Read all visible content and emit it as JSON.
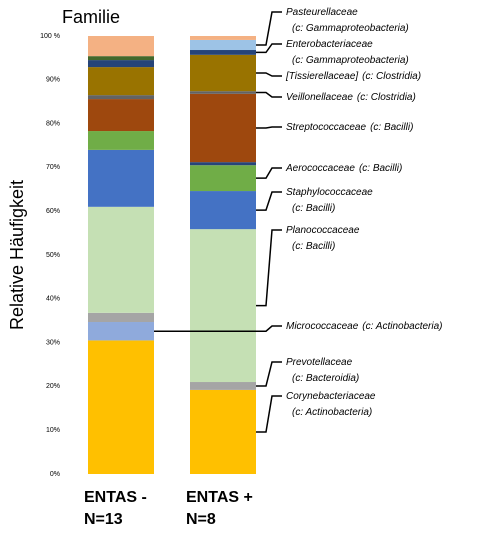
{
  "chart_data": {
    "type": "stacked_bar",
    "title": "Familie",
    "y_label": "Relative Häufigkeit",
    "categories": [
      "ENTAS -\nN=13",
      "ENTAS +\nN=8"
    ],
    "ylim": [
      0,
      100
    ],
    "yticks": [
      {
        "value": 0,
        "label": "0%"
      },
      {
        "value": 10,
        "label": "10%"
      },
      {
        "value": 20,
        "label": "20%"
      },
      {
        "value": 30,
        "label": "30%"
      },
      {
        "value": 40,
        "label": "40%"
      },
      {
        "value": 50,
        "label": "50%"
      },
      {
        "value": 60,
        "label": "60%"
      },
      {
        "value": 70,
        "label": "70%"
      },
      {
        "value": 80,
        "label": "80%"
      },
      {
        "value": 90,
        "label": "90%"
      },
      {
        "value": 100,
        "label": "100 %"
      }
    ],
    "series": [
      {
        "name": "Corynebacteriaceae",
        "class": "(c: Actinobacteria)",
        "color": "#FFC000",
        "values": [
          30.5,
          19.2
        ]
      },
      {
        "name": "Micrococcaceae",
        "class": "(c: Actinobacteria)",
        "color": "#8FAADC",
        "values": [
          4.2,
          0
        ]
      },
      {
        "name": "Prevotellaceae",
        "class": "(c: Bacteroidia)",
        "color": "#A5A5A5",
        "values": [
          2.1,
          1.8
        ]
      },
      {
        "name": "Planococcaceae",
        "class": "(c: Bacilli)",
        "color": "#C5E0B4",
        "values": [
          24.2,
          34.9
        ]
      },
      {
        "name": "Staphylococcaceae",
        "class": "(c: Bacilli)",
        "color": "#4472C4",
        "values": [
          13.0,
          8.7
        ]
      },
      {
        "name": "Aerococcaceae",
        "class": "(c: Bacilli)",
        "color": "#70AD47",
        "values": [
          4.3,
          5.9
        ]
      },
      {
        "color": "#264478",
        "values": [
          0,
          0.7
        ]
      },
      {
        "name": "Streptococcaceae",
        "class": "(c: Bacilli)",
        "color": "#9E480E",
        "values": [
          7.3,
          15.6
        ]
      },
      {
        "name": "Veillonellaceae",
        "class": "(c: Clostridia)",
        "color": "#636363",
        "values": [
          0.9,
          0.6
        ]
      },
      {
        "name": "[Tissierellaceae]",
        "class": "(c: Clostridia)",
        "color": "#997300",
        "values": [
          6.4,
          8.3
        ]
      },
      {
        "name": "Enterobacteriaceae",
        "class": "(c: Gammaproteobacteria)",
        "color": "#264478",
        "values": [
          1.6,
          1.1
        ]
      },
      {
        "color": "#43682B",
        "values": [
          0.9,
          0
        ]
      },
      {
        "name": "Pasteurellaceae",
        "class": "(c: Gammaproteobacteria)",
        "color": "#9DC3E6",
        "values": [
          0,
          2.3
        ]
      },
      {
        "color": "#F4B183",
        "values": [
          4.6,
          0.9
        ]
      }
    ]
  }
}
